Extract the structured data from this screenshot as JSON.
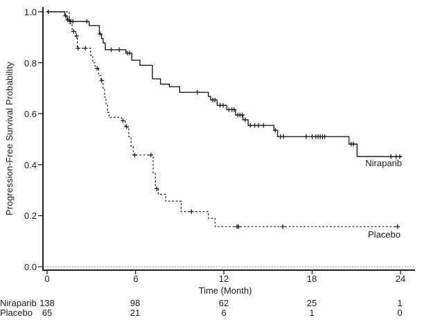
{
  "y_axis": {
    "title": "Progression-Free Survival Probability",
    "tick_labels": [
      "1.0",
      "0.8",
      "0.6",
      "0.4",
      "0.2",
      "0.0"
    ]
  },
  "x_axis": {
    "title": "Time (Month)",
    "tick_labels": [
      "0",
      "6",
      "12",
      "18",
      "24"
    ]
  },
  "curve_labels": {
    "niraparib": "Niraparib",
    "placebo": "Placebo"
  },
  "at_risk": {
    "rows": [
      {
        "label": "Niraparib",
        "values": [
          "138",
          "98",
          "62",
          "25",
          "1"
        ]
      },
      {
        "label": "Placebo",
        "values": [
          "65",
          "21",
          "6",
          "1",
          "0"
        ]
      }
    ]
  },
  "chart_data": {
    "type": "line",
    "subtype": "kaplan-meier-step",
    "title": "",
    "xlabel": "Time (Month)",
    "ylabel": "Progression-Free Survival Probability",
    "xlim": [
      0,
      24
    ],
    "ylim": [
      0.0,
      1.0
    ],
    "x_ticks": [
      0,
      6,
      12,
      18,
      24
    ],
    "y_ticks": [
      1.0,
      0.8,
      0.6,
      0.4,
      0.2,
      0.0
    ],
    "grid": "none",
    "zero_reference_line": "dotted",
    "legend_position": "curve-end-labels",
    "line_color": "#1f1f1f",
    "series": [
      {
        "name": "Niraparib",
        "line_style": "solid",
        "n_at_risk": [
          138,
          98,
          62,
          25,
          1
        ],
        "end_month": 24.1,
        "steps": [
          [
            0,
            1.0
          ],
          [
            1.2,
            0.984
          ],
          [
            1.35,
            0.968
          ],
          [
            1.55,
            0.962
          ],
          [
            2.85,
            0.946
          ],
          [
            3.55,
            0.913
          ],
          [
            3.7,
            0.895
          ],
          [
            3.8,
            0.878
          ],
          [
            3.95,
            0.851
          ],
          [
            5.35,
            0.838
          ],
          [
            5.75,
            0.81
          ],
          [
            6.3,
            0.79
          ],
          [
            7.15,
            0.737
          ],
          [
            7.7,
            0.716
          ],
          [
            8.3,
            0.706
          ],
          [
            9.0,
            0.684
          ],
          [
            10.95,
            0.668
          ],
          [
            11.1,
            0.654
          ],
          [
            11.55,
            0.633
          ],
          [
            12.2,
            0.616
          ],
          [
            12.8,
            0.595
          ],
          [
            13.3,
            0.576
          ],
          [
            13.65,
            0.554
          ],
          [
            15.4,
            0.535
          ],
          [
            15.65,
            0.51
          ],
          [
            20.5,
            0.481
          ],
          [
            21.05,
            0.432
          ]
        ],
        "censors": [
          [
            0.08,
            1.0
          ],
          [
            1.25,
            0.984
          ],
          [
            1.4,
            0.968
          ],
          [
            1.5,
            0.968
          ],
          [
            1.6,
            0.962
          ],
          [
            1.75,
            0.962
          ],
          [
            2.7,
            0.962
          ],
          [
            3.6,
            0.913
          ],
          [
            4.35,
            0.851
          ],
          [
            4.9,
            0.851
          ],
          [
            5.45,
            0.838
          ],
          [
            5.6,
            0.838
          ],
          [
            10.2,
            0.684
          ],
          [
            11.25,
            0.654
          ],
          [
            11.4,
            0.654
          ],
          [
            11.75,
            0.633
          ],
          [
            11.95,
            0.633
          ],
          [
            12.35,
            0.616
          ],
          [
            12.55,
            0.616
          ],
          [
            12.7,
            0.616
          ],
          [
            12.95,
            0.595
          ],
          [
            13.1,
            0.595
          ],
          [
            13.25,
            0.595
          ],
          [
            13.45,
            0.576
          ],
          [
            13.8,
            0.554
          ],
          [
            14.1,
            0.554
          ],
          [
            14.35,
            0.554
          ],
          [
            14.7,
            0.554
          ],
          [
            15.5,
            0.535
          ],
          [
            15.85,
            0.51
          ],
          [
            16.05,
            0.51
          ],
          [
            17.6,
            0.51
          ],
          [
            18.0,
            0.51
          ],
          [
            18.25,
            0.51
          ],
          [
            18.4,
            0.51
          ],
          [
            18.55,
            0.51
          ],
          [
            18.7,
            0.51
          ],
          [
            18.85,
            0.51
          ],
          [
            20.65,
            0.481
          ],
          [
            20.8,
            0.481
          ],
          [
            23.35,
            0.432
          ],
          [
            23.7,
            0.432
          ],
          [
            23.95,
            0.432
          ]
        ]
      },
      {
        "name": "Placebo",
        "line_style": "dashed",
        "n_at_risk": [
          65,
          21,
          6,
          1,
          0
        ],
        "end_month": 23.9,
        "steps": [
          [
            0,
            1.0
          ],
          [
            1.5,
            0.954
          ],
          [
            1.7,
            0.923
          ],
          [
            1.95,
            0.905
          ],
          [
            2.05,
            0.857
          ],
          [
            2.95,
            0.83
          ],
          [
            3.1,
            0.8
          ],
          [
            3.25,
            0.778
          ],
          [
            3.5,
            0.75
          ],
          [
            3.65,
            0.73
          ],
          [
            3.8,
            0.7
          ],
          [
            3.9,
            0.665
          ],
          [
            4.0,
            0.635
          ],
          [
            4.1,
            0.605
          ],
          [
            4.2,
            0.586
          ],
          [
            5.05,
            0.573
          ],
          [
            5.3,
            0.549
          ],
          [
            5.55,
            0.51
          ],
          [
            5.7,
            0.47
          ],
          [
            5.85,
            0.438
          ],
          [
            7.2,
            0.365
          ],
          [
            7.35,
            0.306
          ],
          [
            7.55,
            0.284
          ],
          [
            8.05,
            0.257
          ],
          [
            9.1,
            0.216
          ],
          [
            10.95,
            0.19
          ],
          [
            11.4,
            0.157
          ]
        ],
        "censors": [
          [
            1.8,
            0.923
          ],
          [
            2.0,
            0.905
          ],
          [
            2.1,
            0.857
          ],
          [
            2.6,
            0.857
          ],
          [
            3.4,
            0.778
          ],
          [
            3.7,
            0.73
          ],
          [
            5.15,
            0.573
          ],
          [
            5.4,
            0.549
          ],
          [
            5.95,
            0.438
          ],
          [
            7.05,
            0.438
          ],
          [
            7.45,
            0.306
          ],
          [
            9.8,
            0.216
          ],
          [
            12.9,
            0.157
          ],
          [
            13.0,
            0.157
          ],
          [
            16.0,
            0.157
          ],
          [
            23.8,
            0.157
          ]
        ]
      }
    ]
  }
}
